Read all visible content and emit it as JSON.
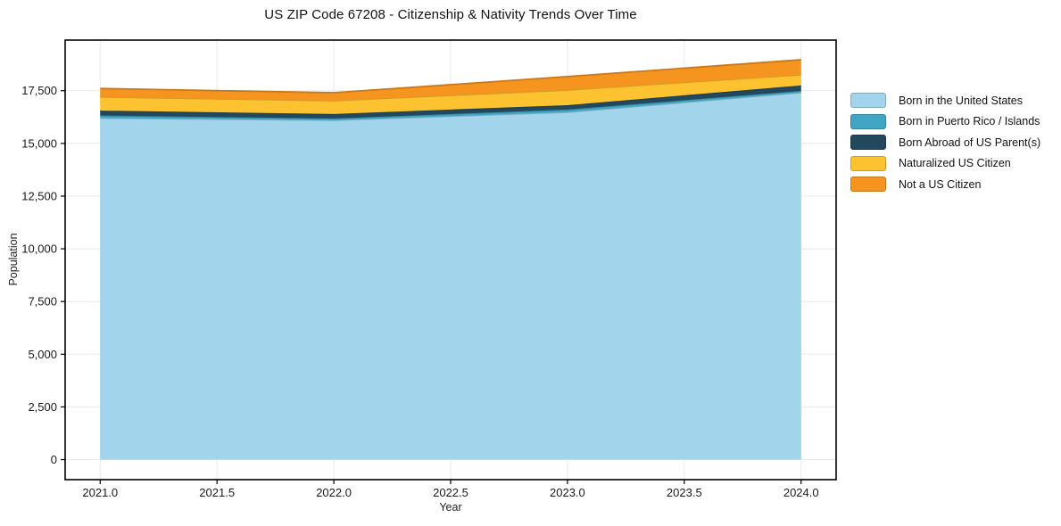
{
  "figure": {
    "title": "US ZIP Code 67208 - Citizenship & Nativity Trends Over Time"
  },
  "axes": {
    "x_label": "Year",
    "y_label": "Population"
  },
  "chart_data": {
    "type": "area",
    "stacked": true,
    "title": "US ZIP Code 67208 - Citizenship & Nativity Trends Over Time",
    "xlabel": "Year",
    "ylabel": "Population",
    "x": [
      2021,
      2022,
      2023,
      2024
    ],
    "series": [
      {
        "name": "Born in the United States",
        "color": "#a2d4ec",
        "values": [
          16200,
          16100,
          16480,
          17410
        ]
      },
      {
        "name": "Born in Puerto Rico / Islands",
        "color": "#41a6c4",
        "values": [
          125,
          85,
          125,
          85
        ]
      },
      {
        "name": "Born Abroad of US Parent(s)",
        "color": "#21485c",
        "values": [
          230,
          210,
          210,
          255
        ]
      },
      {
        "name": "Naturalized US Citizen",
        "color": "#fcc22f",
        "values": [
          650,
          630,
          720,
          505
        ]
      },
      {
        "name": "Not a US Citizen",
        "color": "#f5941f",
        "values": [
          400,
          380,
          635,
          715
        ]
      }
    ],
    "stacked_totals": [
      17605,
      17405,
      18170,
      18970
    ],
    "xlim": [
      2020.85,
      2024.15
    ],
    "ylim": [
      -950,
      19900
    ],
    "xticks": {
      "values": [
        2021.0,
        2021.5,
        2022.0,
        2022.5,
        2023.0,
        2023.5,
        2024.0
      ],
      "labels": [
        "2021.0",
        "2021.5",
        "2022.0",
        "2022.5",
        "2023.0",
        "2023.5",
        "2024.0"
      ]
    },
    "yticks": {
      "values": [
        0,
        2500,
        5000,
        7500,
        10000,
        12500,
        15000,
        17500
      ],
      "labels": [
        "0",
        "2,500",
        "5,000",
        "7,500",
        "10,000",
        "12,500",
        "15,000",
        "17,500"
      ]
    },
    "grid": true,
    "legend_position": "right"
  },
  "style_colors": {
    "grid": "#e8e8e8",
    "spine": "#000000",
    "tick_text": "#1a1a1a",
    "background": "#ffffff"
  }
}
